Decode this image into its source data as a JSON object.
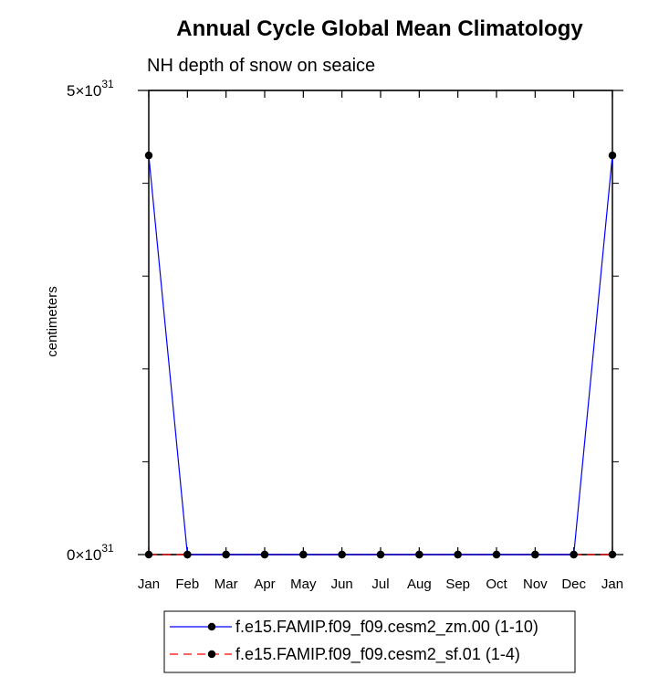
{
  "chart_data": {
    "type": "line",
    "title": "Annual Cycle Global Mean Climatology",
    "subtitle": "NH depth of snow on seaice",
    "ylabel": "centimeters",
    "xlabel": "",
    "categories": [
      "Jan",
      "Feb",
      "Mar",
      "Apr",
      "May",
      "Jun",
      "Jul",
      "Aug",
      "Sep",
      "Oct",
      "Nov",
      "Dec",
      "Jan"
    ],
    "ylim": [
      0,
      5e+31
    ],
    "y_tick_labels": [
      {
        "value": 0,
        "mantissa": "0",
        "times": "×10",
        "exponent": "31"
      },
      {
        "value": 5e+31,
        "mantissa": "5",
        "times": "×10",
        "exponent": "31"
      }
    ],
    "y_minor_ticks": [
      1e+31,
      2e+31,
      3e+31,
      4e+31
    ],
    "grid": false,
    "legend_placement": "bottom",
    "series": [
      {
        "name": "f.e15.FAMIP.f09_f09.cesm2_zm.00 (1-10)",
        "color": "#0000ff",
        "dash": "solid",
        "marker": "circle",
        "values": [
          4.3e+31,
          0,
          0,
          0,
          0,
          0,
          0,
          0,
          0,
          0,
          0,
          0,
          4.3e+31
        ]
      },
      {
        "name": "f.e15.FAMIP.f09_f09.cesm2_sf.01 (1-4)",
        "color": "#ff0000",
        "dash": "dashed",
        "marker": "circle",
        "values": [
          0,
          0,
          0,
          0,
          0,
          0,
          0,
          0,
          0,
          0,
          0,
          0,
          0
        ]
      }
    ]
  }
}
